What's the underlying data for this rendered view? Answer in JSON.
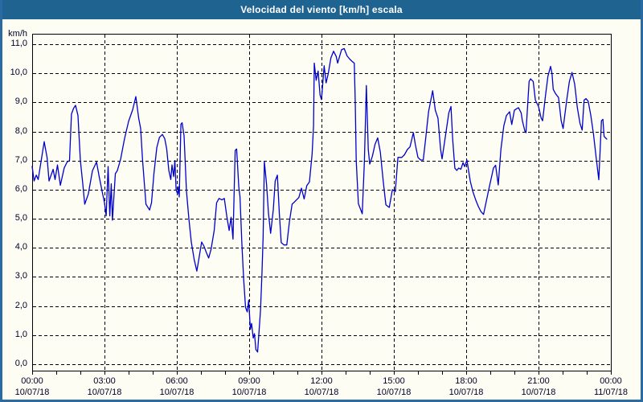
{
  "window": {
    "title": "Velocidad del viento [km/h] escala"
  },
  "colors": {
    "titlebar_bg": "#1f6391",
    "titlebar_text": "#ffffff",
    "frame_border": "#2a6ba3",
    "body_bg": "#fdfdf4",
    "grid": "#000000",
    "axis_text": "#00002a",
    "series_line": "#0000cc"
  },
  "chart_data": {
    "type": "line",
    "title": "Velocidad del viento [km/h] escala",
    "ylabel": "km/h",
    "xlabel": "",
    "ylim": [
      0,
      11
    ],
    "xlim_hours": [
      0,
      24
    ],
    "grid": "dashed",
    "legend_position": "none",
    "minor_tick_every_hours": 1,
    "y_ticks": [
      {
        "value": 11,
        "label": "11,0"
      },
      {
        "value": 10,
        "label": "10,0"
      },
      {
        "value": 9,
        "label": "9,0"
      },
      {
        "value": 8,
        "label": "8,0"
      },
      {
        "value": 7,
        "label": "7,0"
      },
      {
        "value": 6,
        "label": "6,0"
      },
      {
        "value": 5,
        "label": "5,0"
      },
      {
        "value": 4,
        "label": "4,0"
      },
      {
        "value": 3,
        "label": "3,0"
      },
      {
        "value": 2,
        "label": "2,0"
      },
      {
        "value": 1,
        "label": "1,0"
      },
      {
        "value": 0,
        "label": "0,0"
      }
    ],
    "x_ticks": [
      {
        "hour": 0,
        "time": "00:00",
        "date": "10/07/18"
      },
      {
        "hour": 3,
        "time": "03:00",
        "date": "10/07/18"
      },
      {
        "hour": 6,
        "time": "06:00",
        "date": "10/07/18"
      },
      {
        "hour": 9,
        "time": "09:00",
        "date": "10/07/18"
      },
      {
        "hour": 12,
        "time": "12:00",
        "date": "10/07/18"
      },
      {
        "hour": 15,
        "time": "15:00",
        "date": "10/07/18"
      },
      {
        "hour": 18,
        "time": "18:00",
        "date": "10/07/18"
      },
      {
        "hour": 21,
        "time": "21:00",
        "date": "10/07/18"
      },
      {
        "hour": 24,
        "time": "00:00",
        "date": "11/07/18"
      }
    ],
    "series": [
      {
        "name": "Velocidad del viento [km/h]",
        "color": "#0000cc",
        "points": [
          [
            0,
            6.8
          ],
          [
            0.08,
            6.3
          ],
          [
            0.17,
            6.5
          ],
          [
            0.25,
            6.35
          ],
          [
            0.5,
            7.65
          ],
          [
            0.62,
            7.1
          ],
          [
            0.7,
            6.3
          ],
          [
            0.87,
            6.7
          ],
          [
            0.95,
            6.35
          ],
          [
            1.05,
            6.85
          ],
          [
            1.17,
            6.15
          ],
          [
            1.25,
            6.45
          ],
          [
            1.33,
            6.75
          ],
          [
            1.45,
            6.95
          ],
          [
            1.55,
            7
          ],
          [
            1.63,
            8.6
          ],
          [
            1.72,
            8.8
          ],
          [
            1.8,
            8.9
          ],
          [
            1.9,
            8.55
          ],
          [
            2,
            7
          ],
          [
            2.1,
            6.2
          ],
          [
            2.18,
            5.5
          ],
          [
            2.33,
            5.85
          ],
          [
            2.5,
            6.65
          ],
          [
            2.67,
            6.95
          ],
          [
            2.78,
            6.45
          ],
          [
            2.9,
            5.95
          ],
          [
            3,
            5.55
          ],
          [
            3.07,
            5.1
          ],
          [
            3.15,
            6.8
          ],
          [
            3.22,
            5.1
          ],
          [
            3.28,
            6.2
          ],
          [
            3.33,
            4.95
          ],
          [
            3.45,
            6.55
          ],
          [
            3.53,
            6.65
          ],
          [
            3.67,
            7.05
          ],
          [
            3.83,
            7.75
          ],
          [
            4,
            8.35
          ],
          [
            4.17,
            8.75
          ],
          [
            4.3,
            9.2
          ],
          [
            4.42,
            8.45
          ],
          [
            4.5,
            8.1
          ],
          [
            4.58,
            7
          ],
          [
            4.72,
            5.5
          ],
          [
            4.87,
            5.3
          ],
          [
            4.95,
            5.55
          ],
          [
            5.05,
            6.55
          ],
          [
            5.17,
            7.45
          ],
          [
            5.28,
            7.8
          ],
          [
            5.4,
            7.9
          ],
          [
            5.5,
            7.75
          ],
          [
            5.58,
            7.4
          ],
          [
            5.67,
            6.65
          ],
          [
            5.75,
            6.35
          ],
          [
            5.8,
            6.85
          ],
          [
            5.87,
            6.45
          ],
          [
            5.92,
            7
          ],
          [
            5.97,
            6
          ],
          [
            6.03,
            5.85
          ],
          [
            6.07,
            6.1
          ],
          [
            6.1,
            5.75
          ],
          [
            6.17,
            8.25
          ],
          [
            6.22,
            8.3
          ],
          [
            6.3,
            7.85
          ],
          [
            6.4,
            5.95
          ],
          [
            6.5,
            5
          ],
          [
            6.6,
            4.2
          ],
          [
            6.72,
            3.6
          ],
          [
            6.83,
            3.2
          ],
          [
            6.95,
            3.8
          ],
          [
            7.03,
            4.2
          ],
          [
            7.13,
            4.05
          ],
          [
            7.22,
            3.85
          ],
          [
            7.32,
            3.65
          ],
          [
            7.42,
            3.95
          ],
          [
            7.55,
            4.6
          ],
          [
            7.65,
            5.55
          ],
          [
            7.75,
            5.7
          ],
          [
            7.87,
            5.65
          ],
          [
            7.97,
            5.7
          ],
          [
            8.07,
            5.1
          ],
          [
            8.17,
            4.6
          ],
          [
            8.25,
            5.05
          ],
          [
            8.33,
            4.3
          ],
          [
            8.42,
            7.35
          ],
          [
            8.48,
            7.4
          ],
          [
            8.57,
            6.1
          ],
          [
            8.62,
            5.75
          ],
          [
            8.7,
            4.1
          ],
          [
            8.77,
            2.95
          ],
          [
            8.85,
            1.95
          ],
          [
            8.92,
            1.8
          ],
          [
            8.98,
            2.2
          ],
          [
            9.05,
            1.2
          ],
          [
            9.1,
            1.4
          ],
          [
            9.17,
            0.9
          ],
          [
            9.22,
            1.05
          ],
          [
            9.28,
            0.5
          ],
          [
            9.35,
            0.42
          ],
          [
            9.42,
            1.25
          ],
          [
            9.47,
            1.85
          ],
          [
            9.53,
            3.1
          ],
          [
            9.58,
            4.4
          ],
          [
            9.63,
            6.97
          ],
          [
            9.72,
            6.2
          ],
          [
            9.8,
            5.2
          ],
          [
            9.89,
            4.5
          ],
          [
            10,
            5.3
          ],
          [
            10.08,
            6.3
          ],
          [
            10.17,
            6.5
          ],
          [
            10.25,
            5.2
          ],
          [
            10.33,
            4.18
          ],
          [
            10.45,
            4.1
          ],
          [
            10.56,
            4.1
          ],
          [
            10.67,
            4.9
          ],
          [
            10.78,
            5.5
          ],
          [
            10.89,
            5.59
          ],
          [
            11.06,
            5.73
          ],
          [
            11.17,
            6.05
          ],
          [
            11.28,
            5.68
          ],
          [
            11.39,
            6.14
          ],
          [
            11.5,
            6.27
          ],
          [
            11.61,
            7.22
          ],
          [
            11.67,
            8.2
          ],
          [
            11.7,
            10.35
          ],
          [
            11.78,
            9.76
          ],
          [
            11.86,
            10.08
          ],
          [
            11.94,
            9.26
          ],
          [
            12,
            9.1
          ],
          [
            12.11,
            10.26
          ],
          [
            12.19,
            9.67
          ],
          [
            12.28,
            9.99
          ],
          [
            12.39,
            10.53
          ],
          [
            12.5,
            10.76
          ],
          [
            12.61,
            10.58
          ],
          [
            12.67,
            10.35
          ],
          [
            12.83,
            10.81
          ],
          [
            12.94,
            10.85
          ],
          [
            13.06,
            10.6
          ],
          [
            13.17,
            10.49
          ],
          [
            13.28,
            10.4
          ],
          [
            13.36,
            10.35
          ],
          [
            13.4,
            9
          ],
          [
            13.44,
            7
          ],
          [
            13.53,
            5.52
          ],
          [
            13.69,
            5.17
          ],
          [
            13.78,
            7
          ],
          [
            13.86,
            9.58
          ],
          [
            13.94,
            7.38
          ],
          [
            14,
            6.88
          ],
          [
            14.11,
            7.15
          ],
          [
            14.22,
            7.56
          ],
          [
            14.33,
            7.78
          ],
          [
            14.44,
            7.29
          ],
          [
            14.56,
            6.29
          ],
          [
            14.67,
            5.48
          ],
          [
            14.81,
            5.39
          ],
          [
            14.94,
            6
          ],
          [
            15.06,
            5.93
          ],
          [
            15.17,
            7.11
          ],
          [
            15.33,
            7.11
          ],
          [
            15.44,
            7.2
          ],
          [
            15.56,
            7.38
          ],
          [
            15.67,
            7.47
          ],
          [
            15.81,
            7.96
          ],
          [
            15.89,
            7.56
          ],
          [
            16,
            7.11
          ],
          [
            16.11,
            7.02
          ],
          [
            16.22,
            7.02
          ],
          [
            16.33,
            7.83
          ],
          [
            16.44,
            8.68
          ],
          [
            16.61,
            9.4
          ],
          [
            16.72,
            8.73
          ],
          [
            16.83,
            8.46
          ],
          [
            16.94,
            7.38
          ],
          [
            17,
            7.06
          ],
          [
            17.15,
            7.9
          ],
          [
            17.28,
            8.64
          ],
          [
            17.37,
            8.86
          ],
          [
            17.44,
            7.74
          ],
          [
            17.53,
            6.74
          ],
          [
            17.61,
            6.66
          ],
          [
            17.69,
            6.74
          ],
          [
            17.78,
            6.7
          ],
          [
            17.87,
            6.93
          ],
          [
            17.94,
            6.79
          ],
          [
            18.03,
            7.02
          ],
          [
            18.17,
            6.29
          ],
          [
            18.28,
            5.93
          ],
          [
            18.39,
            5.66
          ],
          [
            18.5,
            5.43
          ],
          [
            18.61,
            5.25
          ],
          [
            18.72,
            5.15
          ],
          [
            18.94,
            6.02
          ],
          [
            19.06,
            6.47
          ],
          [
            19.13,
            6.74
          ],
          [
            19.22,
            6.84
          ],
          [
            19.33,
            6.16
          ],
          [
            19.44,
            7.38
          ],
          [
            19.56,
            8.19
          ],
          [
            19.67,
            8.55
          ],
          [
            19.8,
            8.68
          ],
          [
            19.89,
            8.24
          ],
          [
            20,
            8.73
          ],
          [
            20.09,
            8.78
          ],
          [
            20.17,
            8.82
          ],
          [
            20.28,
            8.64
          ],
          [
            20.33,
            8.37
          ],
          [
            20.44,
            8
          ],
          [
            20.48,
            7.96
          ],
          [
            20.61,
            9.72
          ],
          [
            20.67,
            9.81
          ],
          [
            20.78,
            9.72
          ],
          [
            20.87,
            9.08
          ],
          [
            21,
            8.86
          ],
          [
            21.11,
            8.46
          ],
          [
            21.17,
            8.37
          ],
          [
            21.28,
            9.17
          ],
          [
            21.39,
            9.9
          ],
          [
            21.5,
            10.24
          ],
          [
            21.56,
            9.99
          ],
          [
            21.61,
            9.45
          ],
          [
            21.7,
            9.31
          ],
          [
            21.78,
            9.22
          ],
          [
            21.83,
            9.17
          ],
          [
            21.94,
            8.37
          ],
          [
            22.02,
            8.1
          ],
          [
            22.17,
            9.08
          ],
          [
            22.28,
            9.72
          ],
          [
            22.39,
            10.03
          ],
          [
            22.5,
            9.63
          ],
          [
            22.61,
            8.82
          ],
          [
            22.72,
            8.28
          ],
          [
            22.81,
            8.05
          ],
          [
            22.89,
            9.08
          ],
          [
            22.97,
            9.13
          ],
          [
            23.06,
            9.04
          ],
          [
            23.17,
            8.55
          ],
          [
            23.28,
            7.91
          ],
          [
            23.39,
            7.11
          ],
          [
            23.5,
            6.34
          ],
          [
            23.61,
            8.37
          ],
          [
            23.67,
            8.42
          ],
          [
            23.72,
            7.83
          ],
          [
            23.78,
            7.78
          ],
          [
            23.83,
            7.74
          ]
        ]
      }
    ]
  }
}
